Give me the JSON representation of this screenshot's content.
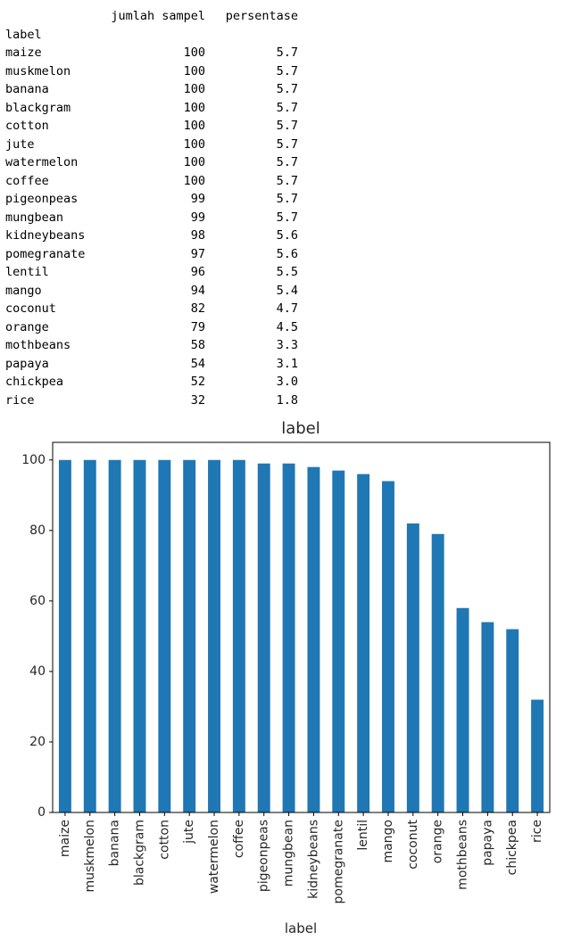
{
  "table": {
    "columns": [
      "jumlah sampel",
      "persentase"
    ],
    "index_name": "label",
    "rows": [
      {
        "label": "maize",
        "jumlah_sampel": "100",
        "persentase": "5.7"
      },
      {
        "label": "muskmelon",
        "jumlah_sampel": "100",
        "persentase": "5.7"
      },
      {
        "label": "banana",
        "jumlah_sampel": "100",
        "persentase": "5.7"
      },
      {
        "label": "blackgram",
        "jumlah_sampel": "100",
        "persentase": "5.7"
      },
      {
        "label": "cotton",
        "jumlah_sampel": "100",
        "persentase": "5.7"
      },
      {
        "label": "jute",
        "jumlah_sampel": "100",
        "persentase": "5.7"
      },
      {
        "label": "watermelon",
        "jumlah_sampel": "100",
        "persentase": "5.7"
      },
      {
        "label": "coffee",
        "jumlah_sampel": "100",
        "persentase": "5.7"
      },
      {
        "label": "pigeonpeas",
        "jumlah_sampel": "99",
        "persentase": "5.7"
      },
      {
        "label": "mungbean",
        "jumlah_sampel": "99",
        "persentase": "5.7"
      },
      {
        "label": "kidneybeans",
        "jumlah_sampel": "98",
        "persentase": "5.6"
      },
      {
        "label": "pomegranate",
        "jumlah_sampel": "97",
        "persentase": "5.6"
      },
      {
        "label": "lentil",
        "jumlah_sampel": "96",
        "persentase": "5.5"
      },
      {
        "label": "mango",
        "jumlah_sampel": "94",
        "persentase": "5.4"
      },
      {
        "label": "coconut",
        "jumlah_sampel": "82",
        "persentase": "4.7"
      },
      {
        "label": "orange",
        "jumlah_sampel": "79",
        "persentase": "4.5"
      },
      {
        "label": "mothbeans",
        "jumlah_sampel": "58",
        "persentase": "3.3"
      },
      {
        "label": "papaya",
        "jumlah_sampel": "54",
        "persentase": "3.1"
      },
      {
        "label": "chickpea",
        "jumlah_sampel": "52",
        "persentase": "3.0"
      },
      {
        "label": "rice",
        "jumlah_sampel": "32",
        "persentase": "1.8"
      }
    ]
  },
  "chart_data": {
    "type": "bar",
    "title": "label",
    "xlabel": "label",
    "ylabel": "",
    "categories": [
      "maize",
      "muskmelon",
      "banana",
      "blackgram",
      "cotton",
      "jute",
      "watermelon",
      "coffee",
      "pigeonpeas",
      "mungbean",
      "kidneybeans",
      "pomegranate",
      "lentil",
      "mango",
      "coconut",
      "orange",
      "mothbeans",
      "papaya",
      "chickpea",
      "rice"
    ],
    "values": [
      100,
      100,
      100,
      100,
      100,
      100,
      100,
      100,
      99,
      99,
      98,
      97,
      96,
      94,
      82,
      79,
      58,
      54,
      52,
      32
    ],
    "ylim": [
      0,
      105
    ],
    "yticks": [
      0,
      20,
      40,
      60,
      80,
      100
    ],
    "grid": false,
    "legend": "none",
    "bar_color": "#1f77b4"
  }
}
